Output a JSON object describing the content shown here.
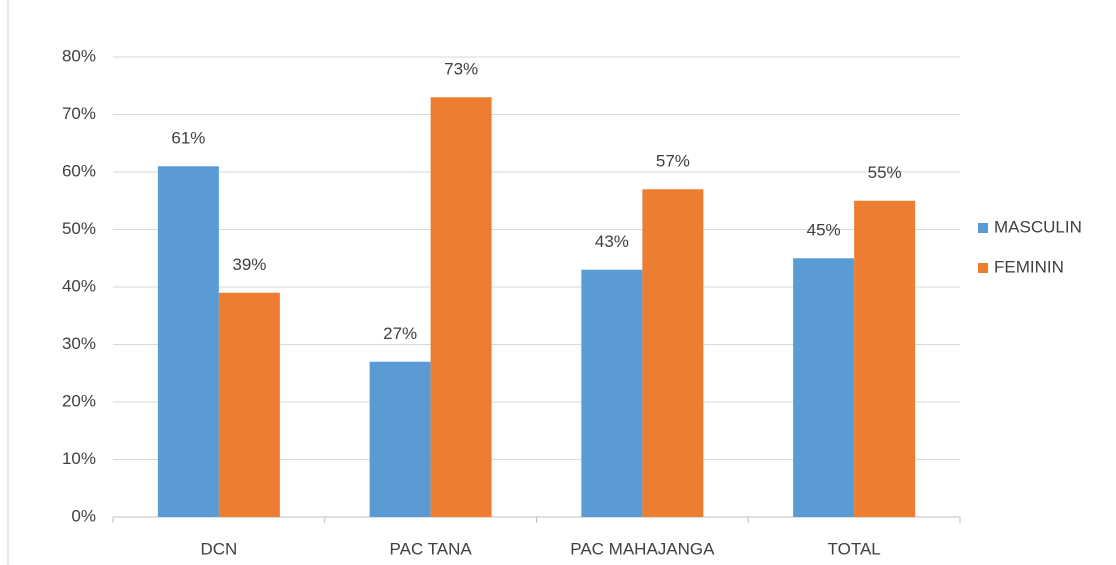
{
  "chart_data": {
    "type": "bar",
    "categories": [
      "DCN",
      "PAC TANA",
      "PAC MAHAJANGA",
      "TOTAL"
    ],
    "series": [
      {
        "name": "MASCULIN",
        "color": "#5b9bd5",
        "values": [
          61,
          27,
          43,
          45
        ],
        "value_labels": [
          "61%",
          "27%",
          "43%",
          "45%"
        ]
      },
      {
        "name": "FEMININ",
        "color": "#ed7d31",
        "values": [
          39,
          73,
          57,
          55
        ],
        "value_labels": [
          "39%",
          "73%",
          "57%",
          "55%"
        ]
      }
    ],
    "ylim": [
      0,
      80
    ],
    "yticks": [
      {
        "value": 0,
        "label": "0%"
      },
      {
        "value": 10,
        "label": "10%"
      },
      {
        "value": 20,
        "label": "20%"
      },
      {
        "value": 30,
        "label": "30%"
      },
      {
        "value": 40,
        "label": "40%"
      },
      {
        "value": 50,
        "label": "50%"
      },
      {
        "value": 60,
        "label": "60%"
      },
      {
        "value": 70,
        "label": "70%"
      },
      {
        "value": 80,
        "label": "80%"
      }
    ],
    "grid": true,
    "legend": "right"
  }
}
